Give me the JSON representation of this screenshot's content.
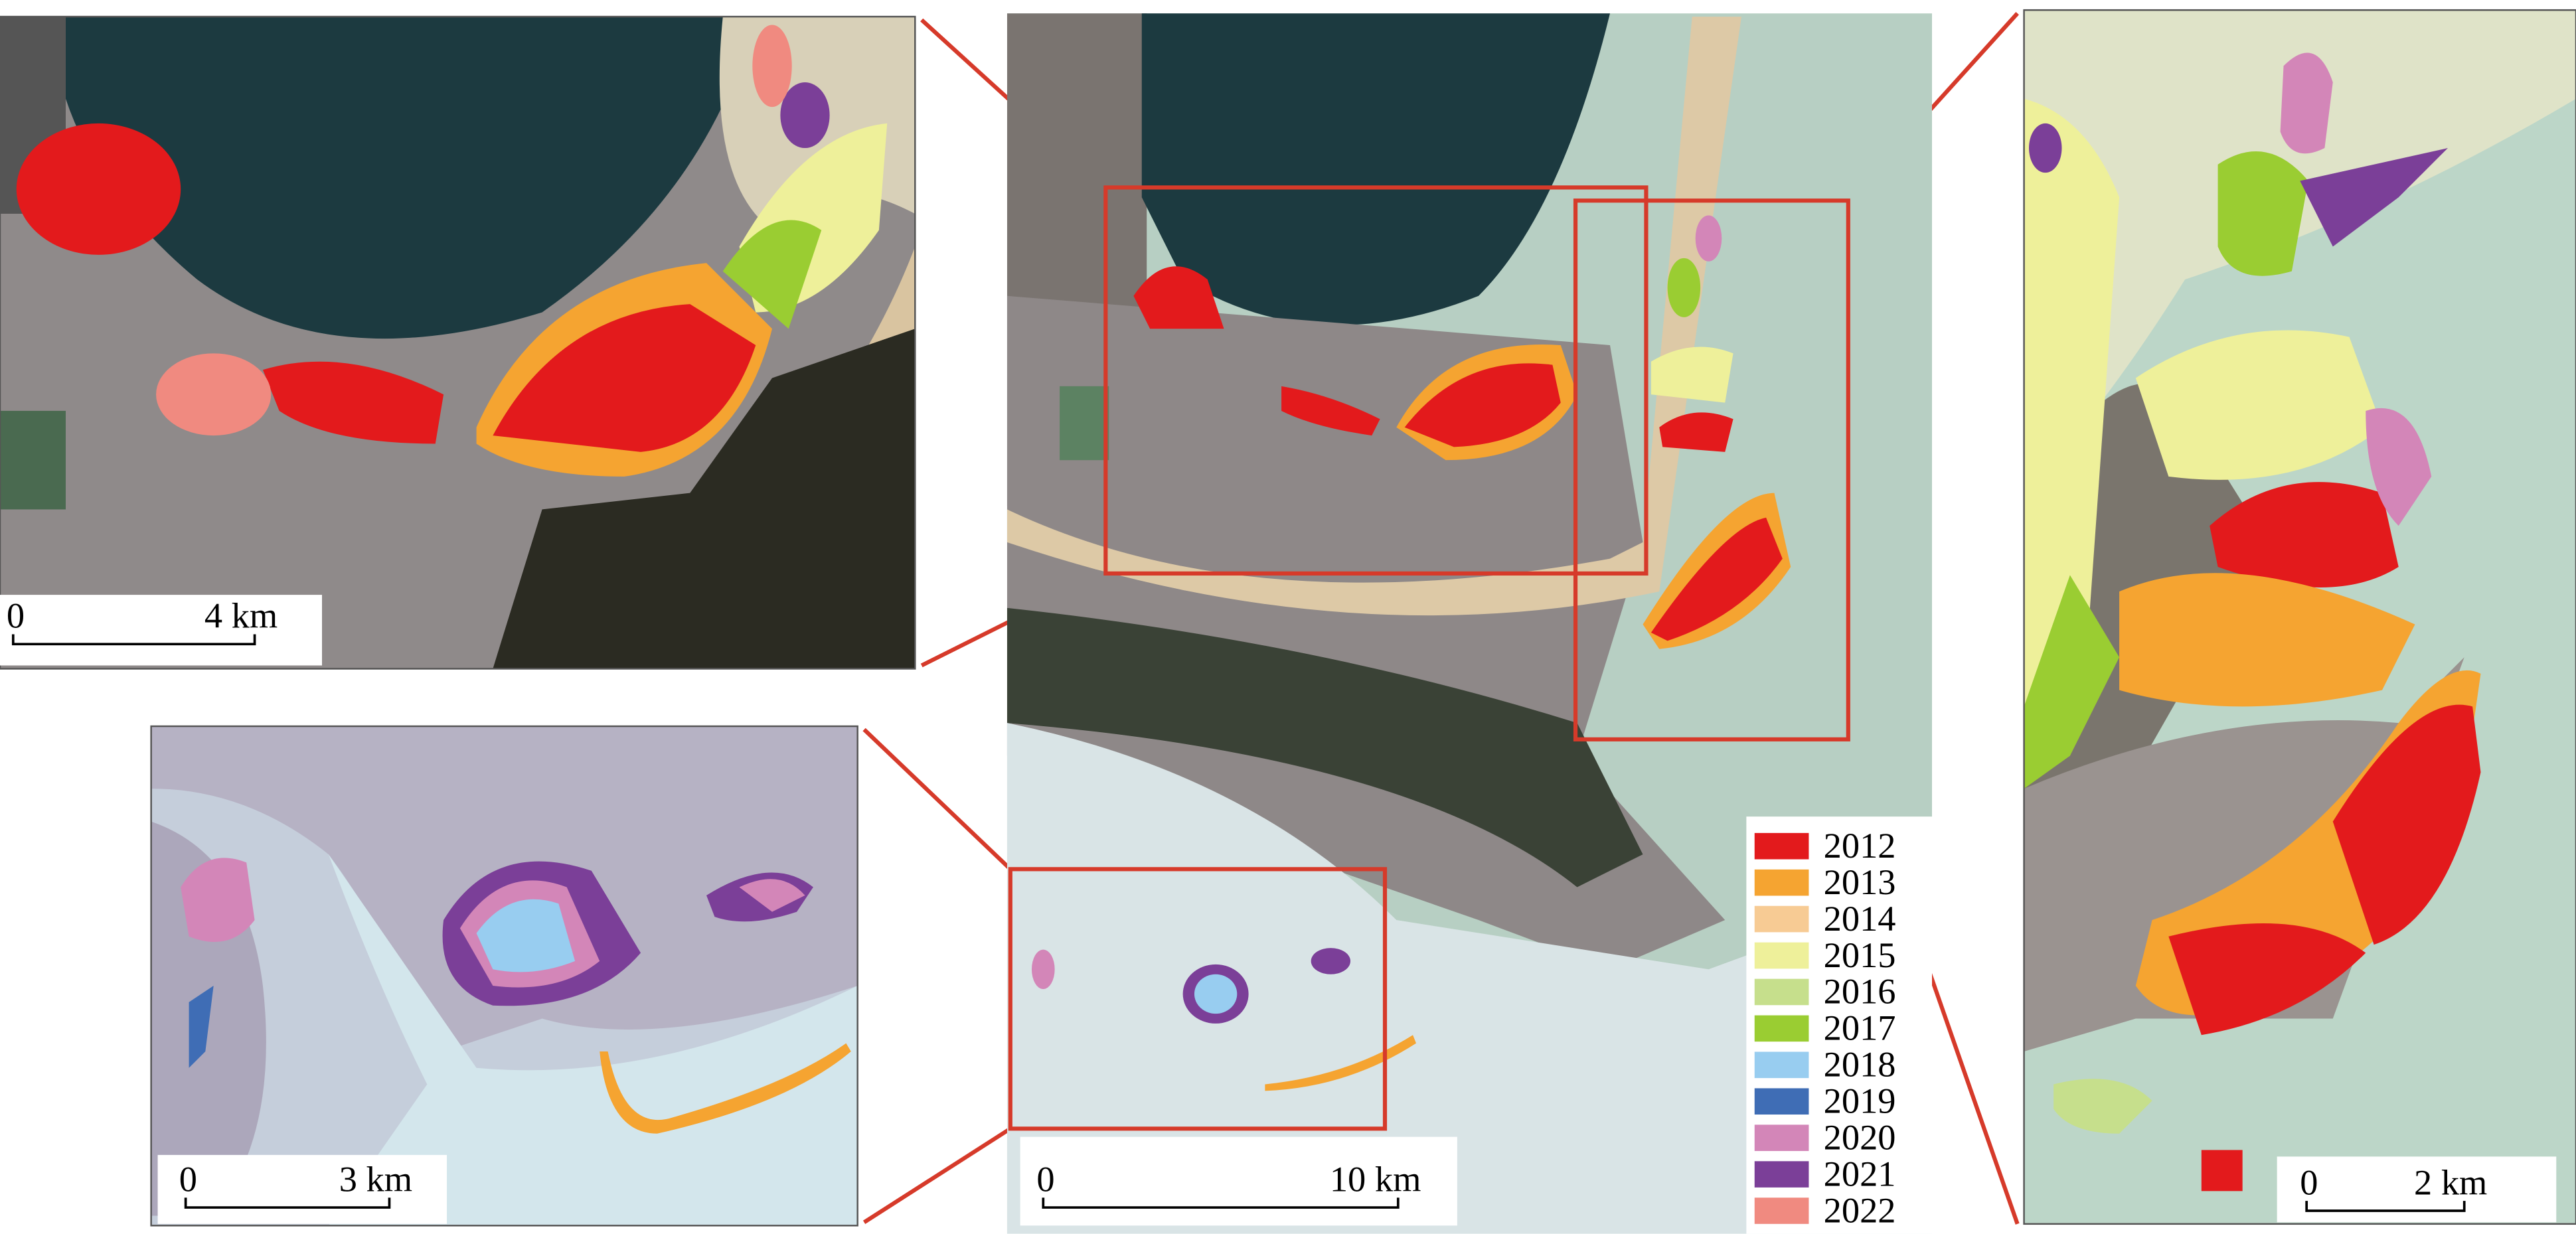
{
  "legend": {
    "items": [
      {
        "label": "2012",
        "color": "#e31a1c"
      },
      {
        "label": "2013",
        "color": "#f5a431"
      },
      {
        "label": "2014",
        "color": "#f7cb94"
      },
      {
        "label": "2015",
        "color": "#eef09a"
      },
      {
        "label": "2016",
        "color": "#c6df8c"
      },
      {
        "label": "2017",
        "color": "#9acd32"
      },
      {
        "label": "2018",
        "color": "#98cdf0"
      },
      {
        "label": "2019",
        "color": "#3f6db5"
      },
      {
        "label": "2020",
        "color": "#d386b8"
      },
      {
        "label": "2021",
        "color": "#7b3f98"
      },
      {
        "label": "2022",
        "color": "#f08a80"
      }
    ]
  },
  "scale_bars": [
    {
      "start": "0",
      "end": "4 km"
    },
    {
      "start": "0",
      "end": "3 km"
    },
    {
      "start": "0",
      "end": "10 km"
    },
    {
      "start": "0",
      "end": "2 km"
    }
  ]
}
